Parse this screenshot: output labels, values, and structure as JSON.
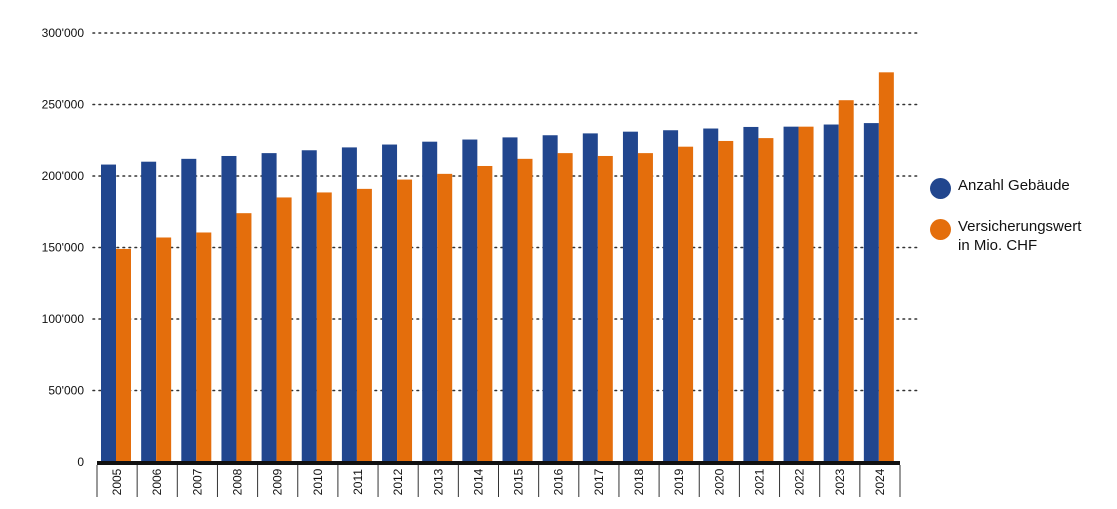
{
  "chart_data": {
    "type": "bar",
    "categories": [
      "2005",
      "2006",
      "2007",
      "2008",
      "2009",
      "2010",
      "2011",
      "2012",
      "2013",
      "2014",
      "2015",
      "2016",
      "2017",
      "2018",
      "2019",
      "2020",
      "2021",
      "2022",
      "2023",
      "2024"
    ],
    "series": [
      {
        "name": "Anzahl Gebäude",
        "color": "#21468e",
        "values": [
          208000,
          210000,
          212000,
          214000,
          216000,
          218000,
          220000,
          222000,
          224000,
          225500,
          227000,
          228500,
          229800,
          231000,
          232000,
          233200,
          234300,
          234500,
          236000,
          237000
        ]
      },
      {
        "name": "Versicherungswert in Mio. CHF",
        "color": "#e46e0c",
        "values": [
          149000,
          157000,
          160500,
          174000,
          185000,
          188500,
          191000,
          197500,
          201500,
          207000,
          212000,
          216000,
          214000,
          216000,
          220500,
          224500,
          226500,
          234500,
          253000,
          272500
        ]
      }
    ],
    "yticks": [
      "0",
      "50'000",
      "100'000",
      "150'000",
      "200'000",
      "250'000",
      "300'000"
    ],
    "ylim": [
      0,
      300000
    ],
    "grid": "dotted-horizontal",
    "legend_position": "right"
  },
  "legend": {
    "item1": {
      "label": "Anzahl Gebäude",
      "color": "#21468e"
    },
    "item2": {
      "line1": "Versicherungswert",
      "line2": "in Mio. CHF",
      "color": "#e46e0c"
    }
  }
}
